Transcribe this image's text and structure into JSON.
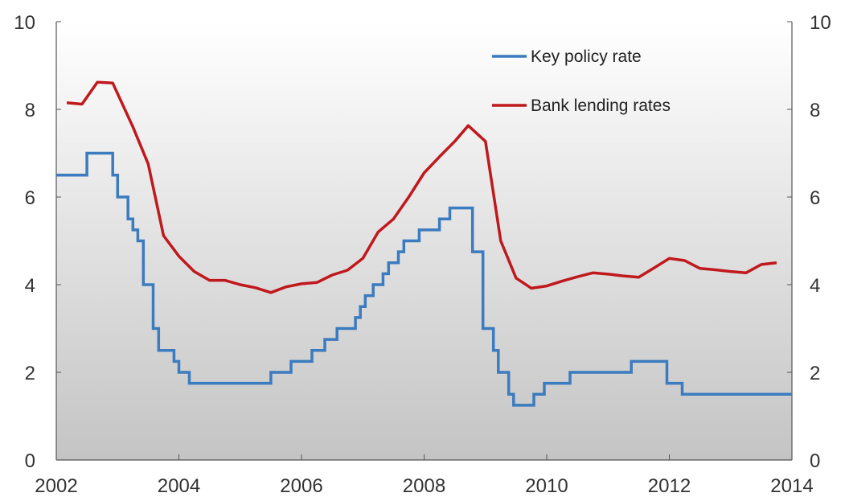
{
  "chart_data": {
    "type": "line",
    "xlim": [
      2002,
      2014
    ],
    "ylim": [
      0,
      10
    ],
    "y_ticks": [
      0,
      2,
      4,
      6,
      8,
      10
    ],
    "x_ticks": [
      2002,
      2004,
      2006,
      2008,
      2010,
      2012,
      2014
    ],
    "y_tick_labels": [
      "0",
      "2",
      "4",
      "6",
      "8",
      "10"
    ],
    "y2_tick_labels": [
      "0",
      "2",
      "4",
      "6",
      "8",
      "10"
    ],
    "x_tick_labels": [
      "2002",
      "2004",
      "2006",
      "2008",
      "2010",
      "2012",
      "2014"
    ],
    "grid": false,
    "background": "gradient white to grey",
    "legend_position": "top-right",
    "series": [
      {
        "name": "Key policy rate",
        "color": "#3b7bbf",
        "style": "step",
        "points": [
          [
            2002.0,
            6.5
          ],
          [
            2002.5,
            6.5
          ],
          [
            2002.5,
            7.0
          ],
          [
            2002.92,
            7.0
          ],
          [
            2002.92,
            6.5
          ],
          [
            2003.0,
            6.5
          ],
          [
            2003.0,
            6.0
          ],
          [
            2003.17,
            6.0
          ],
          [
            2003.17,
            5.5
          ],
          [
            2003.25,
            5.5
          ],
          [
            2003.25,
            5.25
          ],
          [
            2003.33,
            5.25
          ],
          [
            2003.33,
            5.0
          ],
          [
            2003.42,
            5.0
          ],
          [
            2003.42,
            4.0
          ],
          [
            2003.58,
            4.0
          ],
          [
            2003.58,
            3.0
          ],
          [
            2003.67,
            3.0
          ],
          [
            2003.67,
            2.5
          ],
          [
            2003.92,
            2.5
          ],
          [
            2003.92,
            2.25
          ],
          [
            2004.0,
            2.25
          ],
          [
            2004.0,
            2.0
          ],
          [
            2004.17,
            2.0
          ],
          [
            2004.17,
            1.75
          ],
          [
            2005.5,
            1.75
          ],
          [
            2005.5,
            2.0
          ],
          [
            2005.83,
            2.0
          ],
          [
            2005.83,
            2.25
          ],
          [
            2006.17,
            2.25
          ],
          [
            2006.17,
            2.5
          ],
          [
            2006.38,
            2.5
          ],
          [
            2006.38,
            2.75
          ],
          [
            2006.58,
            2.75
          ],
          [
            2006.58,
            3.0
          ],
          [
            2006.88,
            3.0
          ],
          [
            2006.88,
            3.25
          ],
          [
            2006.96,
            3.25
          ],
          [
            2006.96,
            3.5
          ],
          [
            2007.04,
            3.5
          ],
          [
            2007.04,
            3.75
          ],
          [
            2007.17,
            3.75
          ],
          [
            2007.17,
            4.0
          ],
          [
            2007.33,
            4.0
          ],
          [
            2007.33,
            4.25
          ],
          [
            2007.42,
            4.25
          ],
          [
            2007.42,
            4.5
          ],
          [
            2007.58,
            4.5
          ],
          [
            2007.58,
            4.75
          ],
          [
            2007.67,
            4.75
          ],
          [
            2007.67,
            5.0
          ],
          [
            2007.92,
            5.0
          ],
          [
            2007.92,
            5.25
          ],
          [
            2008.25,
            5.25
          ],
          [
            2008.25,
            5.5
          ],
          [
            2008.42,
            5.5
          ],
          [
            2008.42,
            5.75
          ],
          [
            2008.79,
            5.75
          ],
          [
            2008.79,
            4.75
          ],
          [
            2008.96,
            4.75
          ],
          [
            2008.96,
            3.0
          ],
          [
            2009.13,
            3.0
          ],
          [
            2009.13,
            2.5
          ],
          [
            2009.21,
            2.5
          ],
          [
            2009.21,
            2.0
          ],
          [
            2009.38,
            2.0
          ],
          [
            2009.38,
            1.5
          ],
          [
            2009.46,
            1.5
          ],
          [
            2009.46,
            1.25
          ],
          [
            2009.79,
            1.25
          ],
          [
            2009.79,
            1.5
          ],
          [
            2009.96,
            1.5
          ],
          [
            2009.96,
            1.75
          ],
          [
            2010.38,
            1.75
          ],
          [
            2010.38,
            2.0
          ],
          [
            2011.38,
            2.0
          ],
          [
            2011.38,
            2.25
          ],
          [
            2011.96,
            2.25
          ],
          [
            2011.96,
            1.75
          ],
          [
            2012.21,
            1.75
          ],
          [
            2012.21,
            1.5
          ],
          [
            2014.0,
            1.5
          ]
        ]
      },
      {
        "name": "Bank lending rates",
        "color": "#c0191d",
        "style": "line",
        "points": [
          [
            2002.17,
            8.15
          ],
          [
            2002.42,
            8.12
          ],
          [
            2002.67,
            8.62
          ],
          [
            2002.92,
            8.6
          ],
          [
            2003.25,
            7.6
          ],
          [
            2003.5,
            6.75
          ],
          [
            2003.75,
            5.12
          ],
          [
            2004.0,
            4.65
          ],
          [
            2004.25,
            4.3
          ],
          [
            2004.5,
            4.1
          ],
          [
            2004.75,
            4.1
          ],
          [
            2005.0,
            4.0
          ],
          [
            2005.25,
            3.93
          ],
          [
            2005.5,
            3.82
          ],
          [
            2005.75,
            3.95
          ],
          [
            2006.0,
            4.02
          ],
          [
            2006.25,
            4.05
          ],
          [
            2006.5,
            4.22
          ],
          [
            2006.75,
            4.33
          ],
          [
            2007.0,
            4.6
          ],
          [
            2007.25,
            5.2
          ],
          [
            2007.5,
            5.5
          ],
          [
            2007.75,
            6.0
          ],
          [
            2008.0,
            6.55
          ],
          [
            2008.25,
            6.92
          ],
          [
            2008.5,
            7.27
          ],
          [
            2008.72,
            7.63
          ],
          [
            2009.0,
            7.27
          ],
          [
            2009.25,
            5.0
          ],
          [
            2009.5,
            4.15
          ],
          [
            2009.75,
            3.92
          ],
          [
            2010.0,
            3.97
          ],
          [
            2010.25,
            4.08
          ],
          [
            2010.5,
            4.18
          ],
          [
            2010.75,
            4.27
          ],
          [
            2011.0,
            4.24
          ],
          [
            2011.25,
            4.2
          ],
          [
            2011.5,
            4.17
          ],
          [
            2011.75,
            4.38
          ],
          [
            2012.0,
            4.6
          ],
          [
            2012.25,
            4.55
          ],
          [
            2012.5,
            4.37
          ],
          [
            2012.75,
            4.34
          ],
          [
            2013.0,
            4.3
          ],
          [
            2013.25,
            4.27
          ],
          [
            2013.5,
            4.46
          ],
          [
            2013.75,
            4.5
          ]
        ]
      }
    ]
  }
}
